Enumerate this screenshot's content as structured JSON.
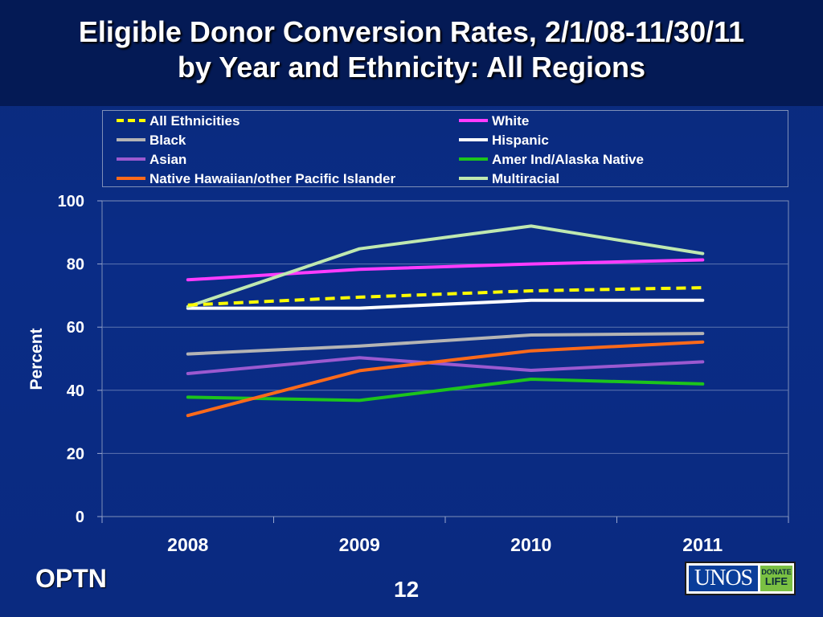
{
  "slide": {
    "title_line1": "Eligible Donor Conversion Rates, 2/1/08-11/30/11",
    "title_line2": "by Year and Ethnicity: All Regions",
    "footer_left": "OPTN",
    "page_number": "12",
    "logo_text": "UNOS",
    "logo_badge_line1": "DONATE",
    "logo_badge_line2": "LIFE"
  },
  "chart_data": {
    "type": "line",
    "title": "Eligible Donor Conversion Rates, 2/1/08-11/30/11 by Year and Ethnicity: All Regions",
    "xlabel": "",
    "ylabel": "Percent",
    "categories": [
      "2008",
      "2009",
      "2010",
      "2011"
    ],
    "ylim": [
      0,
      100
    ],
    "yticks": [
      0,
      20,
      40,
      60,
      80,
      100
    ],
    "grid": true,
    "legend_position": "top",
    "series": [
      {
        "name": "All Ethnicities",
        "color": "#ffff00",
        "dashed": true,
        "values": [
          67,
          69.5,
          71.5,
          72.5
        ]
      },
      {
        "name": "White",
        "color": "#ff3cff",
        "dashed": false,
        "values": [
          75,
          78.3,
          80,
          81.3
        ]
      },
      {
        "name": "Black",
        "color": "#b4b4b4",
        "dashed": false,
        "values": [
          51.5,
          54,
          57.5,
          58
        ]
      },
      {
        "name": "Hispanic",
        "color": "#ffffff",
        "dashed": false,
        "values": [
          66,
          66,
          68.5,
          68.5
        ]
      },
      {
        "name": "Asian",
        "color": "#9b59d0",
        "dashed": false,
        "values": [
          45.3,
          50.3,
          46.3,
          49
        ]
      },
      {
        "name": "Amer Ind/Alaska Native",
        "color": "#1cc41c",
        "dashed": false,
        "values": [
          37.8,
          36.8,
          43.5,
          42
        ]
      },
      {
        "name": "Native Hawaiian/other Pacific Islander",
        "color": "#ff6a1a",
        "dashed": false,
        "values": [
          32,
          46.2,
          52.5,
          55.3
        ]
      },
      {
        "name": "Multiracial",
        "color": "#bfe8b0",
        "dashed": false,
        "values": [
          66.5,
          84.8,
          92,
          83.3
        ]
      }
    ]
  }
}
